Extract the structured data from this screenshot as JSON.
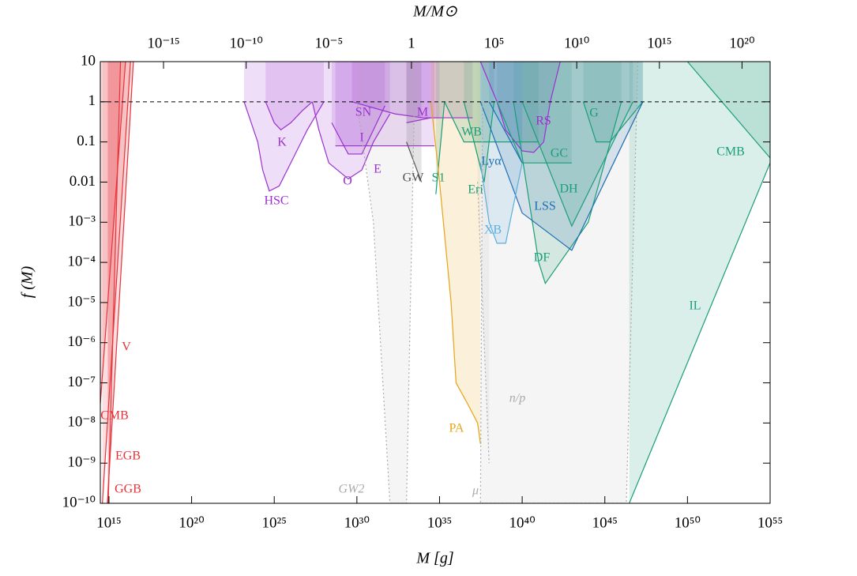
{
  "chart_data": {
    "type": "line",
    "x_label": "M [g]",
    "x2_label": "M/M⊙",
    "y_label": "f (M)",
    "log_x": true,
    "log_y": true,
    "xlim": [
      300000000000000.0,
      1e+55
    ],
    "ylim": [
      1e-10,
      10
    ],
    "x2lim": [
      1.5e-19,
      5e+21
    ],
    "xticks": [
      {
        "value": 1000000000000000.0,
        "label": "10¹⁵"
      },
      {
        "value": 1e+20,
        "label": "10²⁰"
      },
      {
        "value": 1e+25,
        "label": "10²⁵"
      },
      {
        "value": 1e+30,
        "label": "10³⁰"
      },
      {
        "value": 1e+35,
        "label": "10³⁵"
      },
      {
        "value": 1e+40,
        "label": "10⁴⁰"
      },
      {
        "value": 1e+45,
        "label": "10⁴⁵"
      },
      {
        "value": 1e+50,
        "label": "10⁵⁰"
      },
      {
        "value": 1e+55,
        "label": "10⁵⁵"
      }
    ],
    "x2ticks": [
      {
        "value": 1e-15,
        "label": "10⁻¹⁵"
      },
      {
        "value": 1e-10,
        "label": "10⁻¹⁰"
      },
      {
        "value": 1e-05,
        "label": "10⁻⁵"
      },
      1,
      {
        "value": 100000.0,
        "label": "10⁵"
      },
      {
        "value": 10000000000.0,
        "label": "10¹⁰"
      },
      {
        "value": 1000000000000000.0,
        "label": "10¹⁵"
      },
      {
        "value": 1e+20,
        "label": "10²⁰"
      }
    ],
    "yticks": [
      {
        "value": 1e-10,
        "label": "10⁻¹⁰"
      },
      {
        "value": 1e-09,
        "label": "10⁻⁹"
      },
      {
        "value": 1e-08,
        "label": "10⁻⁸"
      },
      {
        "value": 1e-07,
        "label": "10⁻⁷"
      },
      {
        "value": 1e-06,
        "label": "10⁻⁶"
      },
      {
        "value": 1e-05,
        "label": "10⁻⁵"
      },
      {
        "value": 0.0001,
        "label": "10⁻⁴"
      },
      {
        "value": 0.001,
        "label": "10⁻³"
      },
      0.01,
      0.1,
      1,
      10
    ],
    "reference_line": 1,
    "series": [
      {
        "name": "V",
        "color": "#e8333a",
        "x": [
          300000000000000.0,
          1e+16
        ],
        "values": [
          3e-08,
          10
        ]
      },
      {
        "name": "CMB",
        "color": "#e8333a",
        "x": [
          400000000000000.0,
          2e+16
        ],
        "values": [
          1e-10,
          10
        ]
      },
      {
        "name": "EGB",
        "color": "#e8333a",
        "x": [
          800000000000000.0,
          3e+16
        ],
        "values": [
          1e-10,
          10
        ]
      },
      {
        "name": "GGB",
        "color": "#e8333a",
        "x": [
          900000000000000.0,
          5000000000000000.0
        ],
        "values": [
          1e-10,
          10
        ]
      },
      {
        "name": "HSC",
        "color": "#9b30d0",
        "x": [
          1.5e+23,
          1e+24,
          2e+24,
          5e+24,
          2e+25,
          1e+26,
          1e+27,
          1e+28
        ],
        "values": [
          1,
          0.1,
          0.02,
          0.006,
          0.008,
          0.03,
          0.2,
          1
        ]
      },
      {
        "name": "K",
        "color": "#9b30d0",
        "x": [
          3e+24,
          1e+25,
          2.5e+25,
          1e+26,
          5e+26,
          2e+27
        ],
        "values": [
          1,
          0.3,
          0.2,
          0.3,
          0.6,
          1
        ]
      },
      {
        "name": "O",
        "color": "#9b30d0",
        "x": [
          2e+27,
          5e+27,
          2e+28,
          3e+29,
          2e+30,
          1e+31,
          1e+32
        ],
        "values": [
          1,
          0.2,
          0.03,
          0.012,
          0.02,
          0.1,
          0.5
        ]
      },
      {
        "name": "E",
        "color": "#9b30d0",
        "x": [
          3e+28,
          3e+29,
          2e+30,
          1e+31,
          5e+31
        ],
        "values": [
          0.3,
          0.05,
          0.05,
          0.2,
          0.8
        ]
      },
      {
        "name": "I",
        "color": "#9b30d0",
        "x": [
          5e+28,
          5e+34
        ],
        "values": [
          0.08,
          0.08
        ]
      },
      {
        "name": "SN",
        "color": "#9b30d0",
        "x": [
          5e+29,
          2e+32,
          1e+34,
          1e+35
        ],
        "values": [
          1,
          0.5,
          0.4,
          0.4
        ]
      },
      {
        "name": "M",
        "color": "#9b30d0",
        "x": [
          1e+33,
          3e+34,
          1e+37
        ],
        "values": [
          0.3,
          0.4,
          0.4
        ]
      },
      {
        "name": "RS",
        "color": "#9b30d0",
        "x": [
          3e+37,
          3e+38,
          1e+39,
          1e+40,
          5e+40,
          2e+41,
          5e+41,
          2e+42
        ],
        "values": [
          10,
          1,
          0.2,
          0.06,
          0.055,
          0.1,
          1,
          10
        ]
      },
      {
        "name": "WB",
        "color": "#1a9e77",
        "x": [
          2e+35,
          3e+36,
          1e+41
        ],
        "values": [
          1,
          0.1,
          0.1
        ]
      },
      {
        "name": "Eri",
        "color": "#1a9e77",
        "x": [
          3e+36,
          5e+37,
          2e+38
        ],
        "values": [
          1,
          0.01,
          1
        ]
      },
      {
        "name": "S1",
        "color": "#1a9e77",
        "x": [
          6e+34,
          2e+35
        ],
        "values": [
          0.005,
          1
        ]
      },
      {
        "name": "GC",
        "color": "#1a9e77",
        "x": [
          3e+38,
          1e+40,
          1e+43
        ],
        "values": [
          1,
          0.03,
          0.03
        ]
      },
      {
        "name": "G",
        "color": "#1a9e77",
        "x": [
          5e+43,
          3e+44,
          2e+45,
          2e+47
        ],
        "values": [
          1,
          0.1,
          0.1,
          1
        ]
      },
      {
        "name": "DH",
        "color": "#1a9e77",
        "x": [
          1e+40,
          1e+43,
          5e+46
        ],
        "values": [
          1,
          0.0008,
          1
        ]
      },
      {
        "name": "DF",
        "color": "#1a9e77",
        "x": [
          3e+39,
          1e+41,
          2.5e+41,
          1e+44,
          1e+46
        ],
        "values": [
          1,
          0.0001,
          3e-05,
          0.001,
          1
        ]
      },
      {
        "name": "CMB",
        "color": "#1a9e77",
        "x": [
          1e+50,
          1e+55
        ],
        "values": [
          10,
          0.04
        ]
      },
      {
        "name": "IL",
        "color": "#1a9e77",
        "x": [
          3e+46,
          1e+55
        ],
        "values": [
          1e-10,
          0.03
        ]
      },
      {
        "name": "LSS",
        "color": "#1f6fb4",
        "x": [
          3e+37,
          1e+40,
          1e+43,
          2e+47
        ],
        "values": [
          1,
          0.0017,
          0.0002,
          1
        ]
      },
      {
        "name": "Lyα",
        "color": "#1f6fb4",
        "x": [
          1e+38,
          1e+40
        ],
        "values": [
          1,
          0.03
        ]
      },
      {
        "name": "XB",
        "color": "#5aaee0",
        "x": [
          3e+37,
          1e+38,
          3e+38,
          1e+39,
          1e+40
        ],
        "values": [
          0.03,
          0.001,
          0.0003,
          0.0003,
          0.03
        ]
      },
      {
        "name": "PA",
        "color": "#e8a317",
        "x": [
          3e+34,
          1e+35,
          5e+35,
          1e+36,
          5e+36,
          2e+37,
          3e+37
        ],
        "values": [
          1,
          0.01,
          1e-05,
          1e-07,
          3e-08,
          1e-08,
          3e-09
        ]
      },
      {
        "name": "GW",
        "color": "#555555",
        "x": [
          1e+33,
          8e+33
        ],
        "values": [
          0.1,
          0.01
        ]
      },
      {
        "name": "GW2",
        "color": "#aaaaaa",
        "dashed": true,
        "x": [
          1e+30,
          1e+31,
          1e+32,
          1e+33,
          3e+33
        ],
        "values": [
          1,
          0.001,
          1e-10,
          1e-10,
          1
        ]
      },
      {
        "name": "μ",
        "color": "#aaaaaa",
        "dashed": true,
        "x": [
          4e+37,
          3e+37,
          2e+46,
          1e+47
        ],
        "values": [
          1,
          1e-10,
          1e-10,
          10
        ]
      },
      {
        "name": "n/p",
        "color": "#aaaaaa",
        "dashed": true,
        "x": [
          2e+37,
          1e+38
        ],
        "values": [
          0.01,
          1e-09
        ]
      }
    ]
  }
}
